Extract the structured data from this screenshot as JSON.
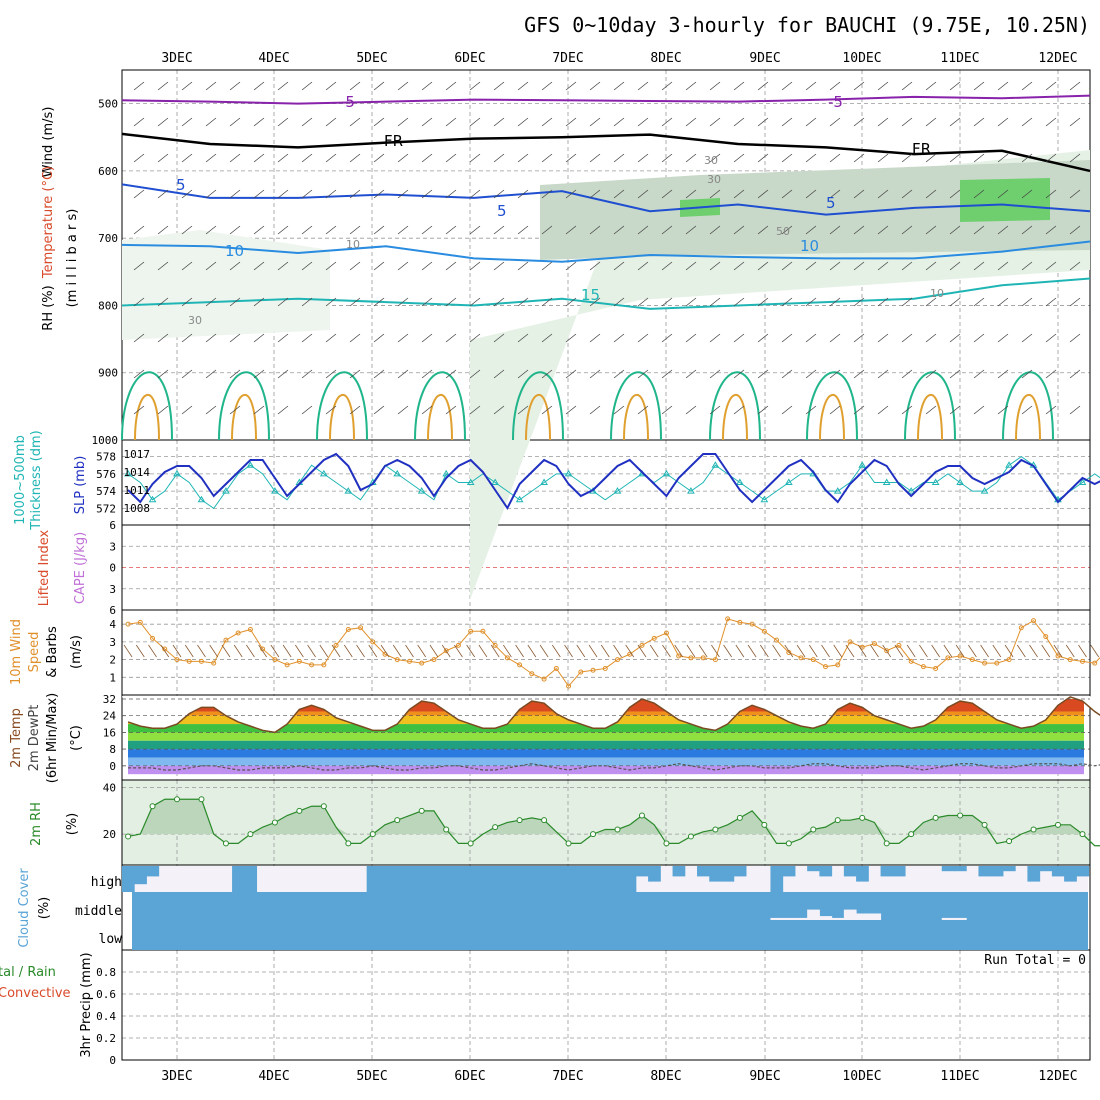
{
  "title": "GFS 0~10day 3-hourly for BAUCHI (9.75E, 10.25N)",
  "dates": [
    "3DEC",
    "4DEC",
    "5DEC",
    "6DEC",
    "7DEC",
    "8DEC",
    "9DEC",
    "10DEC",
    "11DEC",
    "12DEC"
  ],
  "panel_labels": {
    "upper_wind": "Wind (m/s)",
    "upper_temp": "Temperature (°C)",
    "upper_rh": "RH (%)",
    "upper_units": "(m i l l i b a r s)",
    "thickness": "Thickness (dm)",
    "thickness_top": "1000~500mb",
    "slp": "SLP (mb)",
    "lifted": "Lifted Index",
    "cape": "CAPE (J/kg)",
    "wind10_a": "10m Wind",
    "wind10_b": "Speed",
    "wind10_c": "& Barbs",
    "wind10_units": "(m/s)",
    "temp2m_a": "2m Temp",
    "temp2m_b": "2m DewPt",
    "temp2m_c": "(6hr Min/Max)",
    "temp2m_units": "(°C)",
    "rh2m": "2m RH",
    "rh2m_units": "(%)",
    "cloud": "Cloud Cover",
    "cloud_units": "(%)",
    "cloud_high": "high",
    "cloud_middle": "middle",
    "cloud_low": "low",
    "precip_a": "tal / Rain",
    "precip_b": "Convective",
    "precip_c": "3hr Precip (mm)",
    "run_total": "Run Total = 0"
  },
  "contour_labels": [
    {
      "text": "-5",
      "color": "#8822aa"
    },
    {
      "text": "-5",
      "color": "#8822aa"
    },
    {
      "text": "FR",
      "color": "#000000"
    },
    {
      "text": "FR",
      "color": "#000000"
    },
    {
      "text": "5",
      "color": "#1f4fd0"
    },
    {
      "text": "5",
      "color": "#1f4fd0"
    },
    {
      "text": "5",
      "color": "#1f4fd0"
    },
    {
      "text": "10",
      "color": "#2a8ce0"
    },
    {
      "text": "10",
      "color": "#2a8ce0"
    },
    {
      "text": "15",
      "color": "#20b5b5"
    },
    {
      "text": "30",
      "color": "#888888"
    },
    {
      "text": "30",
      "color": "#888888"
    },
    {
      "text": "10",
      "color": "#888888"
    },
    {
      "text": "30",
      "color": "#888888"
    },
    {
      "text": "50",
      "color": "#888888"
    },
    {
      "text": "10",
      "color": "#888888"
    }
  ],
  "chart_data": [
    {
      "type": "line",
      "panel": "upper-air cross section",
      "y_ticks": [
        "500",
        "600",
        "700",
        "800",
        "900",
        "1000"
      ],
      "ylim": [
        1000,
        450
      ],
      "series": [
        {
          "name": "-5",
          "color": "#8822aa",
          "levels": [
            495,
            497,
            500,
            497,
            494,
            495,
            496,
            497,
            494,
            490,
            492,
            488
          ]
        },
        {
          "name": "FR",
          "color": "#000000",
          "levels": [
            545,
            560,
            565,
            558,
            552,
            550,
            546,
            560,
            565,
            575,
            570,
            600
          ]
        },
        {
          "name": "5",
          "color": "#1f4fd0",
          "levels": [
            620,
            640,
            640,
            635,
            640,
            630,
            660,
            650,
            665,
            655,
            650,
            660
          ]
        },
        {
          "name": "10",
          "color": "#2a8ce0",
          "levels": [
            710,
            712,
            722,
            712,
            730,
            735,
            725,
            728,
            730,
            730,
            720,
            705
          ]
        },
        {
          "name": "15",
          "color": "#20b5b5",
          "levels": [
            800,
            795,
            790,
            795,
            800,
            790,
            805,
            800,
            795,
            790,
            770,
            760
          ]
        }
      ]
    },
    {
      "type": "line",
      "panel": "thickness / SLP",
      "thickness_ticks": [
        "572",
        "574",
        "576",
        "578"
      ],
      "slp_ticks": [
        "1008",
        "1011",
        "1014",
        "1017"
      ],
      "series": [
        {
          "name": "Thickness (dm)",
          "color": "#20b5b5",
          "values": [
            576,
            575,
            573,
            574,
            576,
            575,
            573,
            572,
            574,
            576,
            577,
            576,
            574,
            573,
            575,
            577,
            576,
            575,
            574,
            573,
            575,
            577,
            576,
            575,
            574,
            573,
            576,
            575,
            575,
            576,
            575,
            574,
            573,
            574,
            575,
            576,
            576,
            575,
            574,
            573,
            574,
            575,
            576,
            575,
            576,
            575,
            574,
            575,
            577,
            576,
            575,
            574,
            573,
            574,
            575,
            576,
            576,
            574,
            574,
            575,
            577,
            575,
            575,
            575,
            574,
            575,
            575,
            576,
            575,
            574,
            574,
            575,
            577,
            578,
            577,
            575,
            573,
            574,
            575,
            576,
            575
          ]
        },
        {
          "name": "SLP (mb)",
          "color": "#2030c0",
          "values": [
            1011,
            1009,
            1012,
            1014,
            1015,
            1015,
            1013,
            1010,
            1012,
            1014,
            1016,
            1016,
            1013,
            1010,
            1012,
            1014,
            1016,
            1017,
            1015,
            1011,
            1012,
            1015,
            1016,
            1015,
            1013,
            1010,
            1013,
            1015,
            1016,
            1014,
            1011,
            1008,
            1012,
            1014,
            1016,
            1015,
            1012,
            1010,
            1011,
            1013,
            1015,
            1016,
            1014,
            1012,
            1010,
            1013,
            1015,
            1017,
            1017,
            1014,
            1011,
            1009,
            1011,
            1013,
            1015,
            1016,
            1014,
            1011,
            1009,
            1012,
            1014,
            1016,
            1015,
            1012,
            1010,
            1012,
            1014,
            1015,
            1015,
            1013,
            1012,
            1013,
            1014,
            1016,
            1015,
            1012,
            1009,
            1011,
            1013,
            1012,
            1013
          ]
        }
      ]
    },
    {
      "type": "line",
      "panel": "Lifted Index / CAPE",
      "y_ticks": [
        "6",
        "3",
        "0",
        "3",
        "6"
      ],
      "series": []
    },
    {
      "type": "line",
      "panel": "10m wind speed",
      "y_ticks": [
        "1",
        "2",
        "3",
        "4"
      ],
      "series": [
        {
          "name": "Speed",
          "color": "#e0902a",
          "values": [
            4.0,
            4.1,
            3.2,
            2.6,
            2.0,
            1.9,
            1.9,
            1.8,
            3.1,
            3.5,
            3.7,
            2.6,
            2.0,
            1.7,
            1.9,
            1.7,
            1.7,
            2.8,
            3.7,
            3.8,
            3.0,
            2.3,
            2.0,
            1.9,
            1.8,
            2.0,
            2.5,
            2.8,
            3.6,
            3.6,
            2.8,
            2.1,
            1.7,
            1.2,
            0.9,
            1.5,
            0.5,
            1.3,
            1.4,
            1.5,
            2.0,
            2.3,
            2.8,
            3.2,
            3.5,
            2.2,
            2.1,
            2.1,
            2.0,
            4.3,
            4.1,
            4.0,
            3.6,
            3.1,
            2.4,
            2.1,
            2.0,
            1.6,
            1.7,
            3.0,
            2.7,
            2.9,
            2.5,
            2.8,
            1.9,
            1.6,
            1.5,
            2.1,
            2.2,
            2.0,
            1.8,
            1.8,
            2.0,
            3.8,
            4.2,
            3.3,
            2.2,
            2.0,
            1.9,
            1.8,
            2.5
          ]
        }
      ]
    },
    {
      "type": "area",
      "panel": "2m temperature / dewpoint",
      "y_ticks": [
        "0",
        "8",
        "16",
        "24",
        "32"
      ],
      "series": [
        {
          "name": "2m Temp",
          "color": "#7a4a20",
          "values": [
            21,
            19,
            18,
            18,
            20,
            25,
            28,
            28,
            24,
            21,
            19,
            17,
            16,
            20,
            27,
            29,
            27,
            23,
            21,
            19,
            17,
            17,
            20,
            27,
            31,
            30,
            26,
            22,
            20,
            18,
            18,
            20,
            27,
            31,
            30,
            25,
            22,
            20,
            18,
            18,
            21,
            28,
            32,
            30,
            26,
            22,
            20,
            18,
            17,
            20,
            26,
            29,
            27,
            24,
            21,
            19,
            18,
            20,
            27,
            30,
            28,
            24,
            22,
            20,
            18,
            19,
            22,
            28,
            31,
            30,
            26,
            22,
            20,
            18,
            19,
            22,
            29,
            33,
            31,
            26,
            22
          ]
        },
        {
          "name": "2m DewPt",
          "color": "#555555",
          "values": [
            -1,
            -1,
            -1,
            -2,
            -2,
            -1,
            0,
            0,
            -1,
            -2,
            -2,
            -1,
            -1,
            -1,
            0,
            -1,
            -2,
            -2,
            -1,
            -1,
            0,
            -1,
            -2,
            -2,
            -1,
            -1,
            0,
            0,
            -1,
            -2,
            -2,
            -1,
            0,
            1,
            0,
            -1,
            -2,
            -1,
            0,
            0,
            -1,
            -2,
            -1,
            -1,
            0,
            1,
            0,
            -1,
            -2,
            -1,
            0,
            0,
            -1,
            -1,
            -1,
            0,
            1,
            1,
            0,
            -1,
            -1,
            -1,
            0,
            0,
            -1,
            -2,
            -1,
            0,
            1,
            1,
            0,
            -1,
            -1,
            0,
            1,
            1,
            1,
            0,
            1,
            0,
            1
          ]
        }
      ]
    },
    {
      "type": "area",
      "panel": "2m RH",
      "y_ticks": [
        "20",
        "40"
      ],
      "series": [
        {
          "name": "2m RH",
          "color": "#2a8a2a",
          "values": [
            19,
            20,
            32,
            35,
            35,
            35,
            35,
            20,
            16,
            16,
            20,
            23,
            25,
            28,
            30,
            32,
            32,
            23,
            16,
            16,
            20,
            24,
            26,
            28,
            30,
            30,
            22,
            16,
            16,
            20,
            23,
            25,
            26,
            27,
            26,
            21,
            16,
            16,
            20,
            22,
            22,
            24,
            28,
            24,
            16,
            16,
            19,
            21,
            22,
            24,
            27,
            30,
            24,
            16,
            16,
            18,
            22,
            23,
            26,
            26,
            27,
            25,
            16,
            16,
            20,
            25,
            27,
            28,
            28,
            28,
            24,
            16,
            17,
            20,
            22,
            23,
            24,
            24,
            20,
            15,
            15
          ]
        }
      ]
    },
    {
      "type": "bar",
      "panel": "Cloud Cover",
      "series": [
        {
          "name": "high",
          "color": "#5ba4d6",
          "values": [
            100,
            70,
            40,
            0,
            0,
            0,
            0,
            0,
            0,
            100,
            100,
            0,
            0,
            0,
            0,
            0,
            0,
            0,
            0,
            0,
            100,
            100,
            100,
            100,
            100,
            100,
            100,
            100,
            100,
            100,
            100,
            100,
            100,
            100,
            100,
            100,
            100,
            100,
            100,
            100,
            100,
            100,
            40,
            60,
            0,
            40,
            0,
            40,
            60,
            60,
            40,
            0,
            0,
            100,
            40,
            0,
            20,
            40,
            0,
            40,
            60,
            0,
            40,
            40,
            0,
            0,
            0,
            20,
            20,
            0,
            40,
            40,
            20,
            0,
            60,
            20,
            40,
            60,
            40,
            0,
            80
          ]
        },
        {
          "name": "middle",
          "color": "#5ba4d6",
          "values": [
            0,
            0,
            0,
            0,
            0,
            0,
            0,
            0,
            0,
            0,
            0,
            0,
            0,
            0,
            0,
            0,
            0,
            0,
            0,
            0,
            0,
            0,
            0,
            0,
            0,
            0,
            0,
            0,
            0,
            0,
            0,
            0,
            0,
            0,
            0,
            0,
            0,
            0,
            0,
            0,
            0,
            0,
            0,
            0,
            0,
            0,
            0,
            0,
            0,
            0,
            0,
            0,
            0,
            8,
            8,
            8,
            40,
            15,
            8,
            40,
            25,
            25,
            0,
            0,
            0,
            0,
            0,
            8,
            8,
            0,
            0,
            0,
            0,
            0,
            0,
            0,
            0,
            0,
            0,
            0,
            0
          ]
        }
      ]
    },
    {
      "type": "bar",
      "panel": "3hr Precip",
      "y_ticks": [
        "0",
        "0.2",
        "0.4",
        "0.6",
        "0.8"
      ],
      "ylim": [
        0,
        1
      ],
      "series": [
        {
          "name": "Total / Rain",
          "values": []
        }
      ]
    }
  ]
}
